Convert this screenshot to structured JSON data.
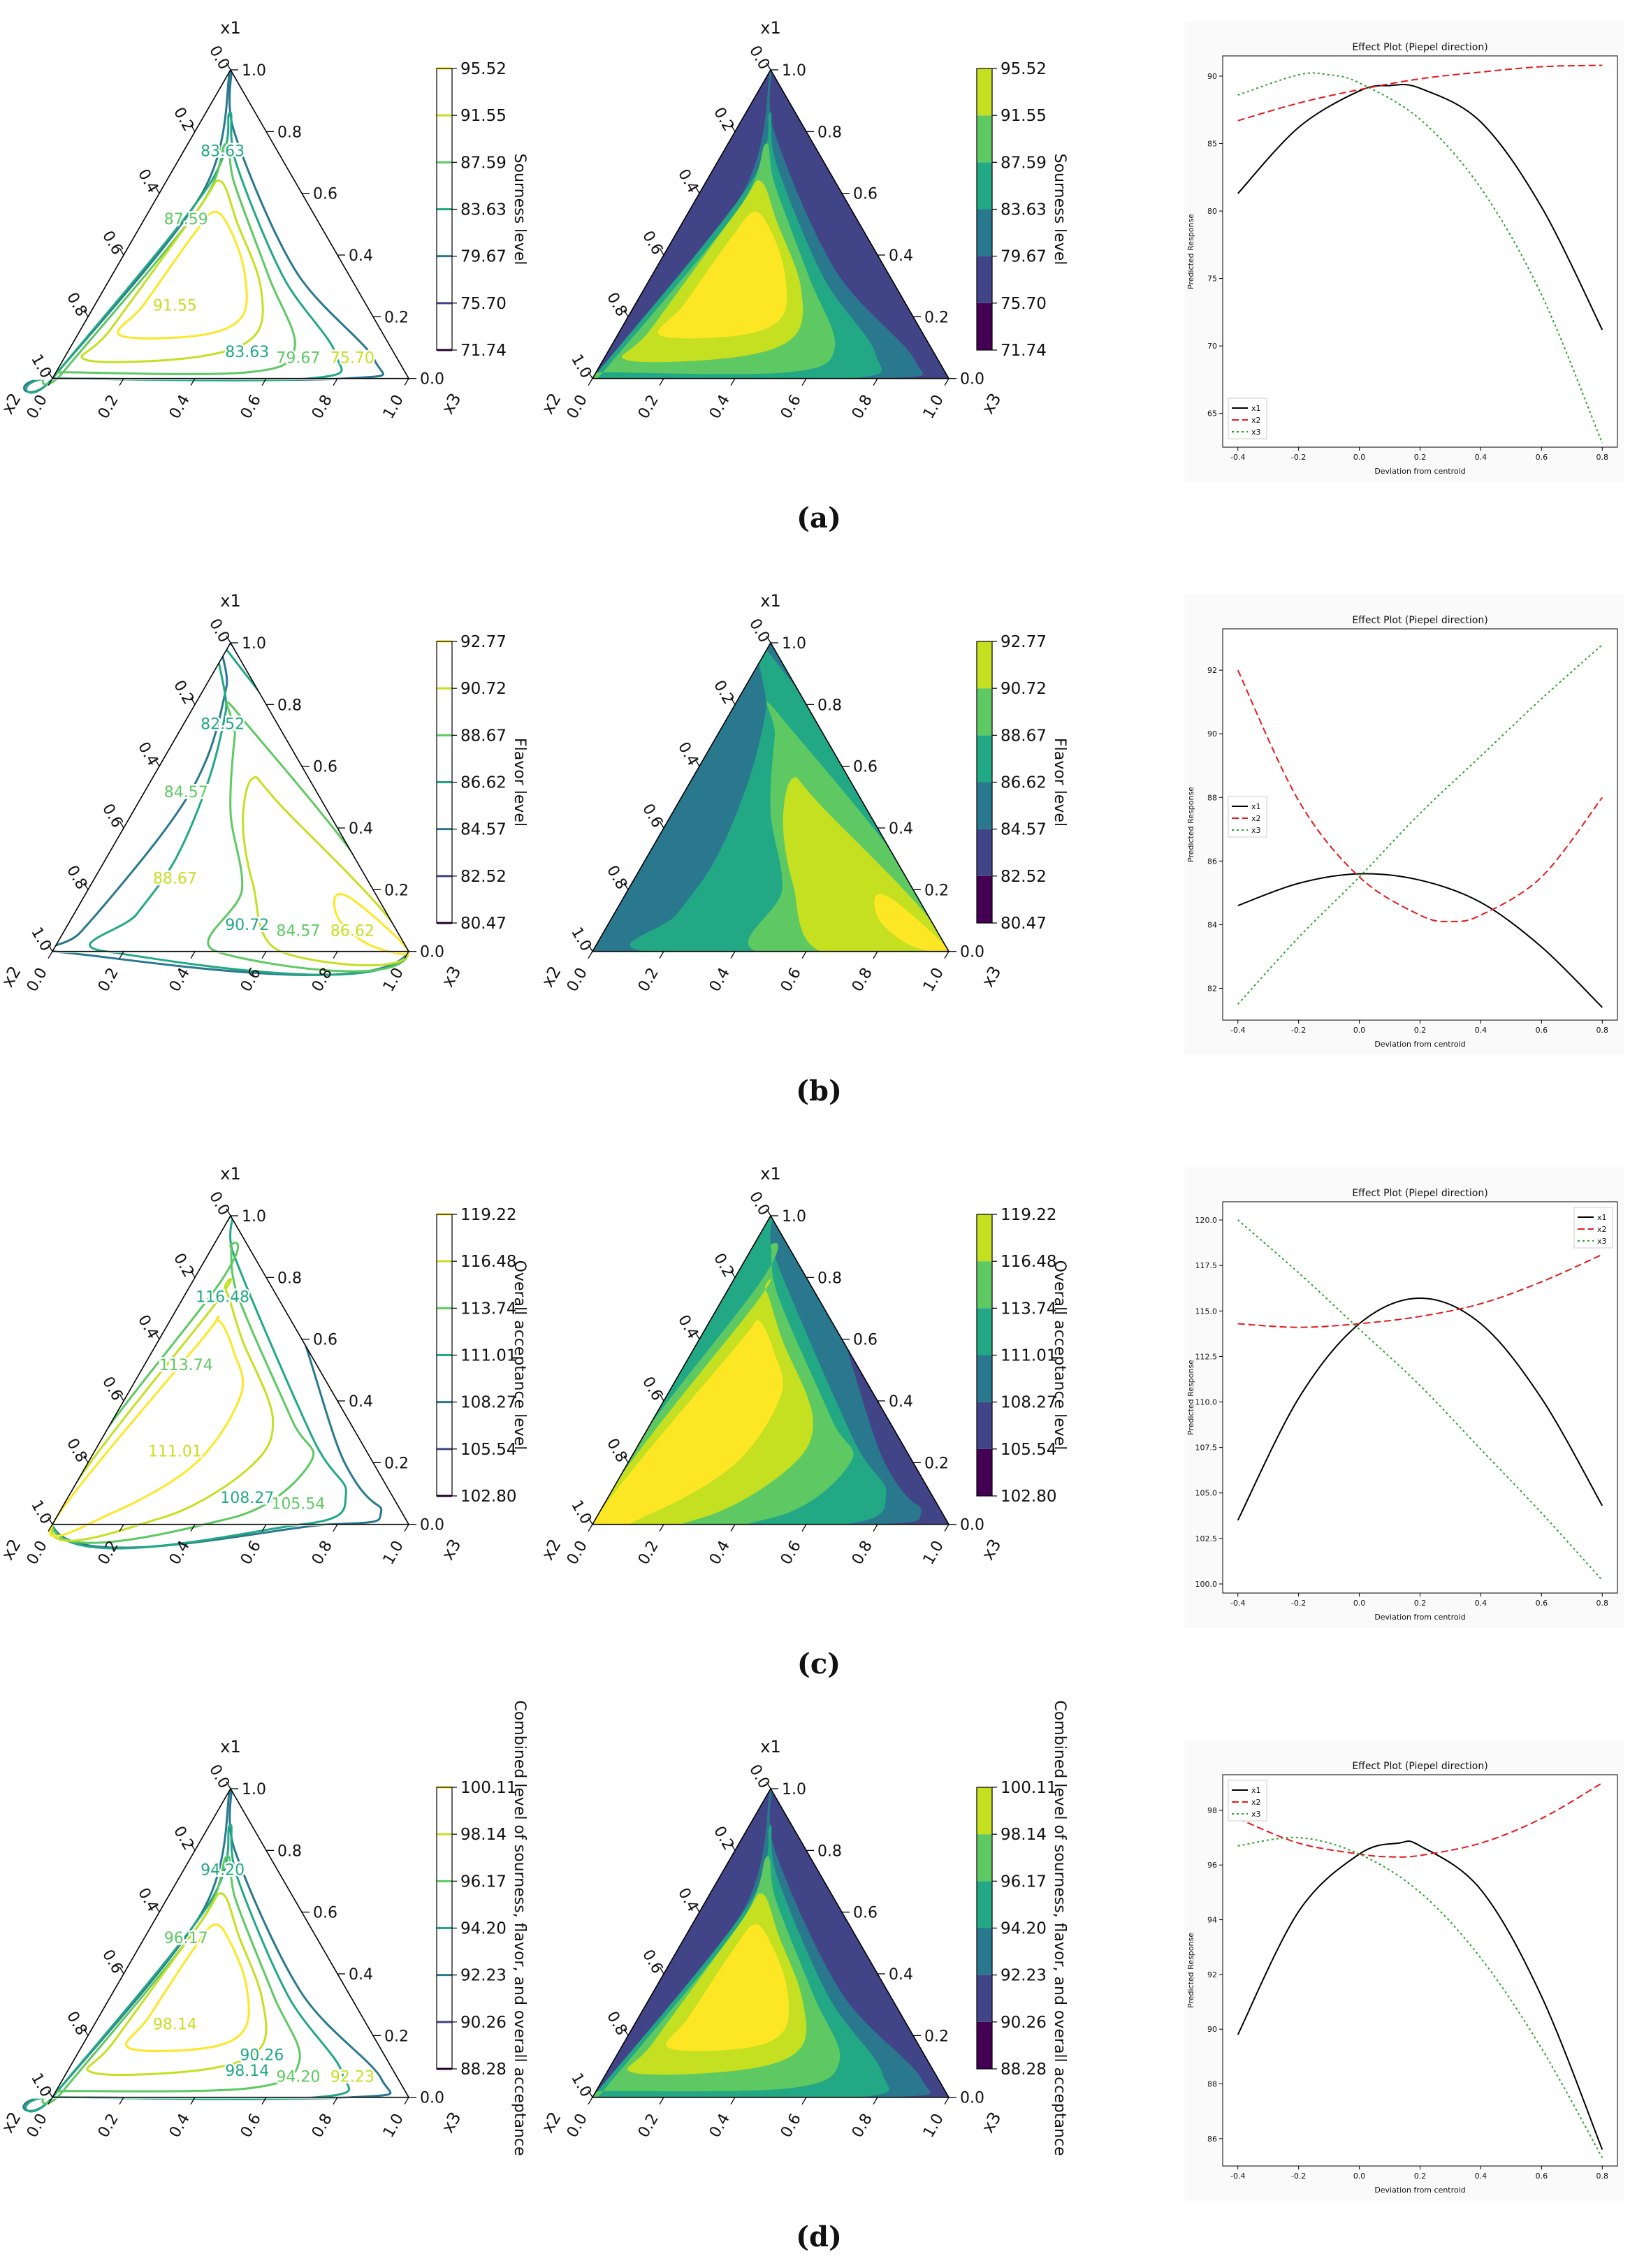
{
  "figure": {
    "captions": [
      "(a)",
      "(b)",
      "(c)",
      "(d)"
    ]
  },
  "colors": {
    "viridis": [
      "#440154",
      "#414487",
      "#2a788e",
      "#22a884",
      "#5ec962",
      "#c5e021",
      "#fde725"
    ],
    "effect_x1": "#000000",
    "effect_x2": "#e41a1c",
    "effect_x3": "#2ca02c"
  },
  "chart_data": [
    {
      "panel": "(a)",
      "type": "ternary-contour",
      "vertex_labels": [
        "x1",
        "x2",
        "x3"
      ],
      "colorbar_label": "Sourness level",
      "levels": [
        "71.74",
        "75.70",
        "79.67",
        "83.63",
        "87.59",
        "91.55",
        "95.52"
      ],
      "contour_labels": [
        "83.63",
        "87.59",
        "91.55",
        "83.63",
        "79.67",
        "75.70"
      ],
      "tick_labels": [
        "0.0",
        "0.2",
        "0.4",
        "0.6",
        "0.8",
        "1.0"
      ],
      "effect_plot": {
        "type": "line",
        "title": "Effect Plot (Piepel direction)",
        "xlabel": "Deviation from centroid",
        "ylabel": "Predicted Response",
        "xlim": [
          -0.45,
          0.85
        ],
        "ylim": [
          62.5,
          91.5
        ],
        "xticks": [
          "-0.4",
          "-0.2",
          "0.0",
          "0.2",
          "0.4",
          "0.6",
          "0.8"
        ],
        "yticks": [
          "65",
          "70",
          "75",
          "80",
          "85",
          "90"
        ],
        "legend_position": "bottom-left",
        "series": [
          {
            "name": "x1",
            "x": [
              -0.4,
              -0.2,
              0.0,
              0.1,
              0.2,
              0.4,
              0.6,
              0.8
            ],
            "y": [
              81.3,
              86.2,
              88.9,
              89.3,
              89.1,
              86.6,
              80.3,
              71.2
            ]
          },
          {
            "name": "x2",
            "x": [
              -0.4,
              -0.2,
              0.0,
              0.2,
              0.4,
              0.6,
              0.8
            ],
            "y": [
              86.7,
              88.0,
              89.0,
              89.8,
              90.3,
              90.7,
              90.8
            ]
          },
          {
            "name": "x3",
            "x": [
              -0.4,
              -0.2,
              -0.1,
              0.0,
              0.2,
              0.4,
              0.6,
              0.8
            ],
            "y": [
              88.6,
              90.1,
              90.1,
              89.5,
              86.8,
              81.7,
              73.8,
              62.8
            ]
          }
        ]
      }
    },
    {
      "panel": "(b)",
      "type": "ternary-contour",
      "vertex_labels": [
        "x1",
        "x2",
        "x3"
      ],
      "colorbar_label": "Flavor level",
      "levels": [
        "80.47",
        "82.52",
        "84.57",
        "86.62",
        "88.67",
        "90.72",
        "92.77"
      ],
      "contour_labels": [
        "82.52",
        "84.57",
        "88.67",
        "90.72",
        "84.57",
        "86.62"
      ],
      "tick_labels": [
        "0.0",
        "0.2",
        "0.4",
        "0.6",
        "0.8",
        "1.0"
      ],
      "effect_plot": {
        "type": "line",
        "title": "Effect Plot (Piepel direction)",
        "xlabel": "Deviation from centroid",
        "ylabel": "Predicted Response",
        "xlim": [
          -0.45,
          0.85
        ],
        "ylim": [
          81.0,
          93.3
        ],
        "xticks": [
          "-0.4",
          "-0.2",
          "0.0",
          "0.2",
          "0.4",
          "0.6",
          "0.8"
        ],
        "yticks": [
          "82",
          "84",
          "86",
          "88",
          "90",
          "92"
        ],
        "legend_position": "middle-left",
        "series": [
          {
            "name": "x1",
            "x": [
              -0.4,
              -0.2,
              0.0,
              0.2,
              0.4,
              0.6,
              0.8
            ],
            "y": [
              84.6,
              85.3,
              85.6,
              85.4,
              84.7,
              83.3,
              81.4
            ]
          },
          {
            "name": "x2",
            "x": [
              -0.4,
              -0.2,
              0.0,
              0.2,
              0.3,
              0.4,
              0.6,
              0.8
            ],
            "y": [
              92.0,
              87.9,
              85.5,
              84.3,
              84.1,
              84.3,
              85.5,
              88.0
            ]
          },
          {
            "name": "x3",
            "x": [
              -0.4,
              -0.2,
              0.0,
              0.2,
              0.4,
              0.6,
              0.8
            ],
            "y": [
              81.5,
              83.6,
              85.5,
              87.5,
              89.3,
              91.1,
              92.8
            ]
          }
        ]
      }
    },
    {
      "panel": "(c)",
      "type": "ternary-contour",
      "vertex_labels": [
        "x1",
        "x2",
        "x3"
      ],
      "colorbar_label": "Overall acceptance level",
      "levels": [
        "102.80",
        "105.54",
        "108.27",
        "111.01",
        "113.74",
        "116.48",
        "119.22"
      ],
      "contour_labels": [
        "116.48",
        "113.74",
        "111.01",
        "108.27",
        "105.54"
      ],
      "tick_labels": [
        "0.0",
        "0.2",
        "0.4",
        "0.6",
        "0.8",
        "1.0"
      ],
      "effect_plot": {
        "type": "line",
        "title": "Effect Plot (Piepel direction)",
        "xlabel": "Deviation from centroid",
        "ylabel": "Predicted Response",
        "xlim": [
          -0.45,
          0.85
        ],
        "ylim": [
          99.5,
          121.0
        ],
        "xticks": [
          "-0.4",
          "-0.2",
          "0.0",
          "0.2",
          "0.4",
          "0.6",
          "0.8"
        ],
        "yticks": [
          "100.0",
          "102.5",
          "105.0",
          "107.5",
          "110.0",
          "112.5",
          "115.0",
          "117.5",
          "120.0"
        ],
        "legend_position": "top-right",
        "series": [
          {
            "name": "x1",
            "x": [
              -0.4,
              -0.2,
              0.0,
              0.2,
              0.4,
              0.6,
              0.8
            ],
            "y": [
              103.5,
              110.2,
              114.3,
              115.7,
              114.3,
              110.2,
              104.3
            ]
          },
          {
            "name": "x2",
            "x": [
              -0.4,
              -0.2,
              0.0,
              0.2,
              0.4,
              0.6,
              0.8
            ],
            "y": [
              114.3,
              114.1,
              114.3,
              114.7,
              115.4,
              116.6,
              118.1
            ]
          },
          {
            "name": "x3",
            "x": [
              -0.4,
              -0.2,
              0.0,
              0.2,
              0.4,
              0.6,
              0.8
            ],
            "y": [
              120.0,
              117.1,
              114.0,
              110.9,
              107.4,
              103.9,
              100.2
            ]
          }
        ]
      }
    },
    {
      "panel": "(d)",
      "type": "ternary-contour",
      "vertex_labels": [
        "x1",
        "x2",
        "x3"
      ],
      "colorbar_label": "Combined level of sourness, flavor, and overall acceptance",
      "levels": [
        "88.28",
        "90.26",
        "92.23",
        "94.20",
        "96.17",
        "98.14",
        "100.11"
      ],
      "contour_labels": [
        "94.20",
        "96.17",
        "98.14",
        "98.14",
        "94.20",
        "92.23",
        "90.26"
      ],
      "tick_labels": [
        "0.0",
        "0.2",
        "0.4",
        "0.6",
        "0.8",
        "1.0"
      ],
      "effect_plot": {
        "type": "line",
        "title": "Effect Plot (Piepel direction)",
        "xlabel": "Deviation from centroid",
        "ylabel": "Predicted Response",
        "xlim": [
          -0.45,
          0.85
        ],
        "ylim": [
          85.0,
          99.3
        ],
        "xticks": [
          "-0.4",
          "-0.2",
          "0.0",
          "0.2",
          "0.4",
          "0.6",
          "0.8"
        ],
        "yticks": [
          "86",
          "88",
          "90",
          "92",
          "94",
          "96",
          "98"
        ],
        "legend_position": "top-left",
        "series": [
          {
            "name": "x1",
            "x": [
              -0.4,
              -0.2,
              0.0,
              0.13,
              0.2,
              0.4,
              0.6,
              0.8
            ],
            "y": [
              89.8,
              94.3,
              96.4,
              96.8,
              96.7,
              95.1,
              91.2,
              85.6
            ]
          },
          {
            "name": "x2",
            "x": [
              -0.4,
              -0.2,
              0.0,
              0.1,
              0.2,
              0.4,
              0.6,
              0.8
            ],
            "y": [
              97.7,
              96.8,
              96.4,
              96.3,
              96.35,
              96.8,
              97.7,
              99.0
            ]
          },
          {
            "name": "x3",
            "x": [
              -0.4,
              -0.2,
              0.0,
              0.2,
              0.4,
              0.6,
              0.8
            ],
            "y": [
              96.7,
              97.0,
              96.4,
              95.0,
              92.6,
              89.3,
              85.3
            ]
          }
        ]
      }
    }
  ]
}
